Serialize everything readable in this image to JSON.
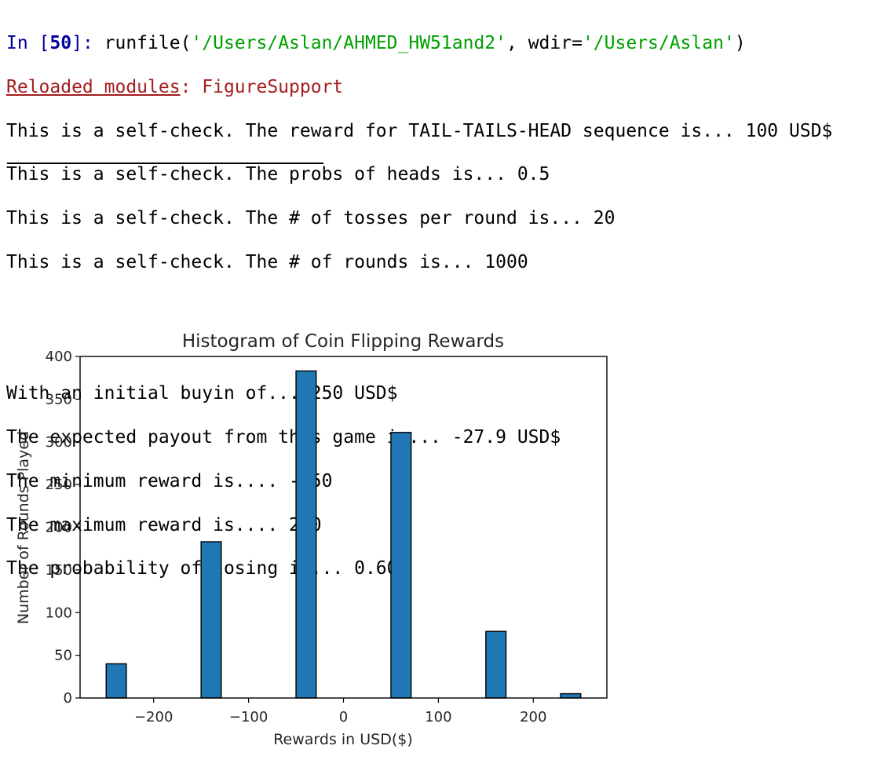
{
  "console": {
    "prompt": {
      "in_label": "In [",
      "number": "50",
      "close": "]: ",
      "call_start": "runfile(",
      "arg1": "'/Users/Aslan/AHMED_HW51and2'",
      "arg_sep": ", wdir=",
      "arg2": "'/Users/Aslan'",
      "call_end": ")"
    },
    "reloaded": {
      "label": "Reloaded modules",
      "rest": ": FigureSupport"
    },
    "self_checks": [
      "This is a self-check. The reward for TAIL-TAILS-HEAD sequence is... 100 USD$",
      "This is a self-check. The probs of heads is... 0.5",
      "This is a self-check. The # of tosses per round is... 20",
      "This is a self-check. The # of rounds is... 1000"
    ],
    "results": [
      "With an initial buyin of... 250 USD$",
      "The expected payout from this game is... -27.9 USD$",
      "The minimum reward is.... -250",
      "The maximum reward is.... 250",
      "The probability of losing is... 0.606"
    ]
  },
  "chart_data": {
    "type": "bar",
    "title": "Histogram of Coin Flipping Rewards",
    "xlabel": "Rewards in USD($)",
    "ylabel": "Number of Rounds Played",
    "xlim": [
      -277.5,
      277.5
    ],
    "ylim": [
      0,
      400
    ],
    "xticks": [
      -200,
      -100,
      0,
      100,
      200
    ],
    "yticks": [
      0,
      50,
      100,
      150,
      200,
      250,
      300,
      350,
      400
    ],
    "bar_color": "#1f77b4",
    "bar_edge_color": "#000000",
    "bins": [
      {
        "x0": -250,
        "x1": -228.75,
        "value": 40
      },
      {
        "x0": -150,
        "x1": -128.75,
        "value": 183
      },
      {
        "x0": -50,
        "x1": -28.75,
        "value": 383
      },
      {
        "x0": 50,
        "x1": 71.25,
        "value": 311
      },
      {
        "x0": 150,
        "x1": 171.25,
        "value": 78
      },
      {
        "x0": 228.75,
        "x1": 250,
        "value": 5
      }
    ]
  }
}
